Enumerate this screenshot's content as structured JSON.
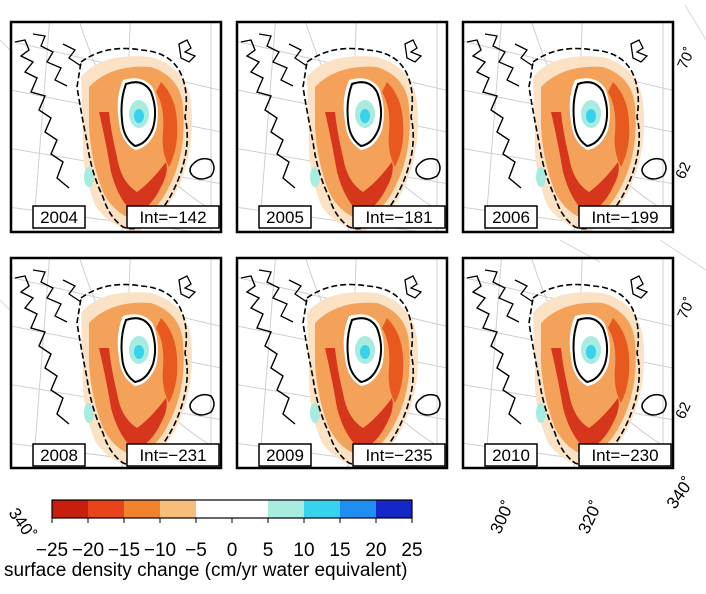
{
  "colorbar": {
    "title": "surface density change (cm/yr water equivalent)",
    "ticks": [
      "−25",
      "−20",
      "−15",
      "−10",
      "−5",
      "0",
      "5",
      "10",
      "15",
      "20",
      "25"
    ],
    "colors": [
      "#c81e10",
      "#e8431a",
      "#f2822e",
      "#f7bd7a",
      "#ffffff",
      "#ffffff",
      "#a8ece0",
      "#37d3ee",
      "#1e8ff0",
      "#1428c8"
    ]
  },
  "panels": [
    {
      "year": "2004",
      "integral": "Int=−142"
    },
    {
      "year": "2005",
      "integral": "Int=−181"
    },
    {
      "year": "2006",
      "integral": "Int=−199"
    },
    {
      "year": "2008",
      "integral": "Int=−231"
    },
    {
      "year": "2009",
      "integral": "Int=−235"
    },
    {
      "year": "2010",
      "integral": "Int=−230"
    }
  ],
  "longitude_labels": [
    "300˚",
    "320˚",
    "340˚"
  ],
  "left_edge_label": "340˚",
  "latitude_labels": [
    "70˚",
    "62"
  ]
}
